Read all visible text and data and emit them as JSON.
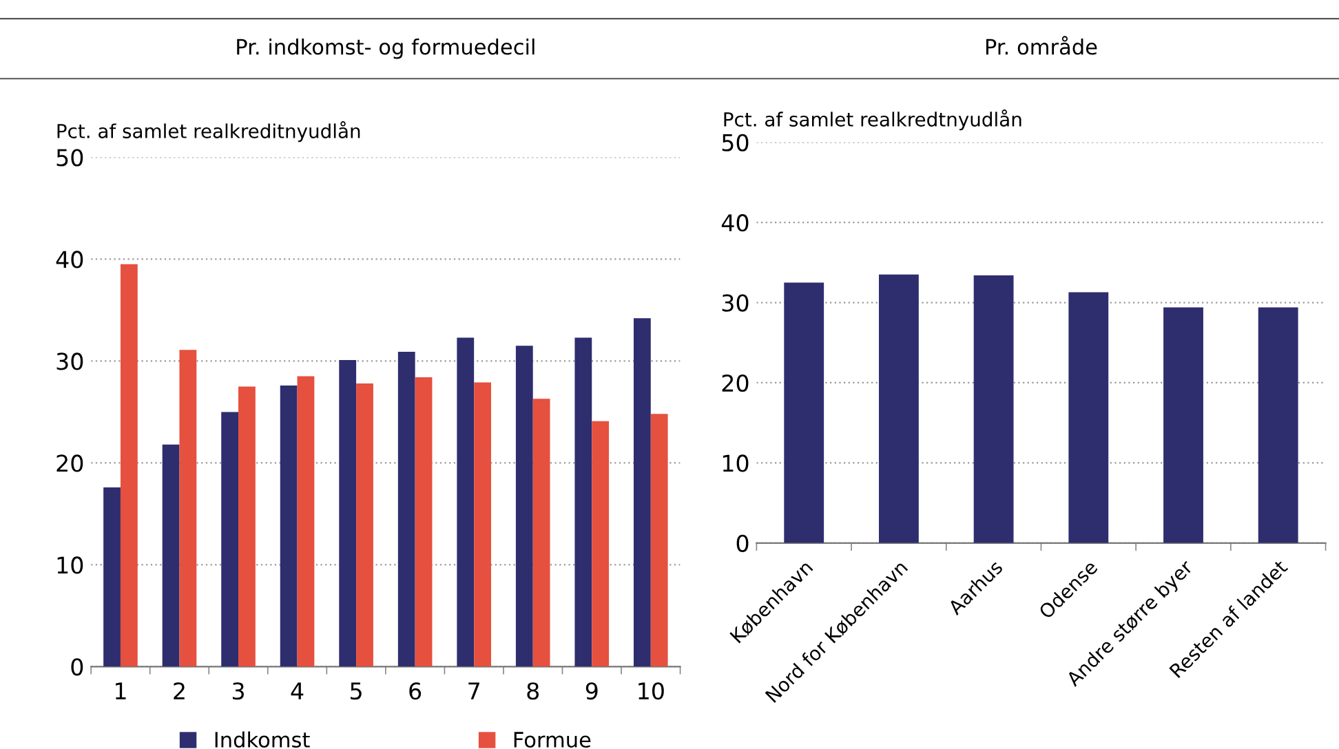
{
  "chart_data": [
    {
      "type": "bar",
      "title": "Pr. indkomst- og formuedecil",
      "ylabel": "Pct. af samlet realkreditnyudlån",
      "categories": [
        "1",
        "2",
        "3",
        "4",
        "5",
        "6",
        "7",
        "8",
        "9",
        "10"
      ],
      "series": [
        {
          "name": "Indkomst",
          "color": "#2e2d6e",
          "values": [
            17.6,
            21.8,
            25.0,
            27.6,
            30.1,
            30.9,
            32.3,
            31.5,
            32.3,
            34.2
          ]
        },
        {
          "name": "Formue",
          "color": "#e5503f",
          "values": [
            39.5,
            31.1,
            27.5,
            28.5,
            27.8,
            28.4,
            27.9,
            26.3,
            24.1,
            24.8
          ]
        }
      ],
      "ylim": [
        0,
        50
      ],
      "yticks": [
        0,
        10,
        20,
        30,
        40,
        50
      ],
      "grid": "y",
      "legend": "bottom"
    },
    {
      "type": "bar",
      "title": "Pr. område",
      "ylabel": "Pct. af samlet realkredtnyudlån",
      "categories": [
        "København",
        "Nord for København",
        "Aarhus",
        "Odense",
        "Andre større byer",
        "Resten af landet"
      ],
      "series": [
        {
          "color": "#2e2d6e",
          "values": [
            32.5,
            33.5,
            33.4,
            31.3,
            29.4,
            29.4
          ]
        }
      ],
      "ylim": [
        0,
        50
      ],
      "yticks": [
        0,
        10,
        20,
        30,
        40,
        50
      ],
      "grid": "y"
    }
  ]
}
